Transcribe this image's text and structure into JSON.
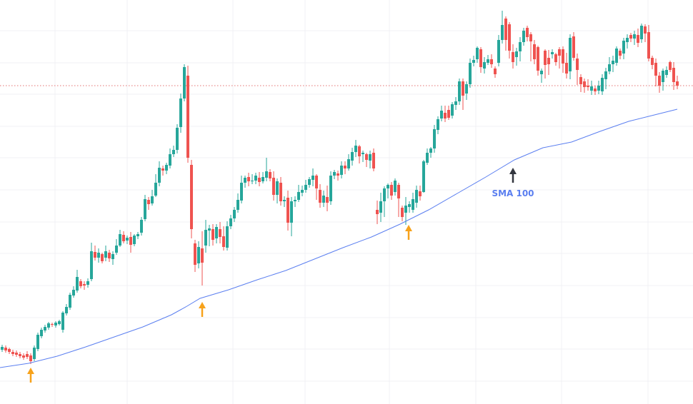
{
  "chart_data": {
    "type": "candlestick",
    "title": "",
    "xlabel": "",
    "ylabel": "",
    "ylim": [
      0,
      566
    ],
    "grid": true,
    "colors": {
      "up": "#26a69a",
      "down": "#ef5350",
      "sma": "#5b7ff0",
      "price_line": "#e57373",
      "arrow_touch": "#f7a21b",
      "arrow_label": "#33363f"
    },
    "last_price": 446,
    "sma": {
      "name": "SMA 100",
      "x": [
        0,
        40,
        80,
        120,
        160,
        200,
        240,
        260,
        280,
        320,
        360,
        400,
        440,
        480,
        520,
        560,
        600,
        640,
        680,
        720,
        760,
        800,
        840,
        880,
        920,
        948
      ],
      "values": [
        51,
        57,
        67,
        80,
        94,
        108,
        125,
        136,
        148,
        160,
        174,
        187,
        203,
        219,
        234,
        252,
        272,
        295,
        318,
        342,
        359,
        367,
        382,
        396,
        406,
        413
      ]
    },
    "arrows": [
      {
        "x": 43,
        "value": 30,
        "type": "touch"
      },
      {
        "x": 283,
        "value": 122,
        "type": "touch"
      },
      {
        "x": 572,
        "value": 230,
        "type": "touch"
      },
      {
        "x": 718,
        "value": 310,
        "type": "label",
        "label": "SMA 100"
      }
    ],
    "candles": [
      [
        3,
        76,
        80,
        83,
        73
      ],
      [
        8,
        79,
        75,
        82,
        72
      ],
      [
        13,
        77,
        73,
        79,
        70
      ],
      [
        18,
        73,
        70,
        76,
        67
      ],
      [
        23,
        72,
        69,
        75,
        66
      ],
      [
        28,
        70,
        67,
        73,
        64
      ],
      [
        33,
        68,
        65,
        71,
        62
      ],
      [
        38,
        70,
        66,
        74,
        63
      ],
      [
        43,
        68,
        60,
        71,
        56
      ],
      [
        48,
        63,
        79,
        82,
        60
      ],
      [
        53,
        77,
        97,
        100,
        74
      ],
      [
        58,
        95,
        104,
        107,
        92
      ],
      [
        63,
        103,
        108,
        111,
        100
      ],
      [
        68,
        107,
        113,
        115,
        104
      ],
      [
        73,
        112,
        111,
        114,
        108
      ],
      [
        78,
        110,
        114,
        116,
        107
      ],
      [
        83,
        112,
        116,
        118,
        110
      ],
      [
        88,
        104,
        128,
        130,
        100
      ],
      [
        93,
        127,
        136,
        140,
        124
      ],
      [
        98,
        135,
        153,
        156,
        132
      ],
      [
        103,
        152,
        160,
        165,
        149
      ],
      [
        108,
        159,
        178,
        188,
        156
      ],
      [
        113,
        172,
        165,
        175,
        162
      ],
      [
        118,
        168,
        166,
        172,
        160
      ],
      [
        123,
        167,
        172,
        176,
        163
      ],
      [
        128,
        175,
        214,
        226,
        172
      ],
      [
        133,
        213,
        205,
        222,
        201
      ],
      [
        138,
        205,
        212,
        218,
        198
      ],
      [
        143,
        210,
        200,
        212,
        197
      ],
      [
        148,
        205,
        214,
        222,
        200
      ],
      [
        153,
        212,
        204,
        216,
        199
      ],
      [
        158,
        203,
        210,
        214,
        195
      ],
      [
        163,
        212,
        222,
        231,
        209
      ],
      [
        168,
        222,
        238,
        244,
        220
      ],
      [
        173,
        237,
        228,
        242,
        225
      ],
      [
        178,
        229,
        233,
        236,
        224
      ],
      [
        183,
        234,
        223,
        241,
        212
      ],
      [
        188,
        224,
        236,
        238,
        221
      ],
      [
        193,
        235,
        238,
        241,
        231
      ],
      [
        198,
        240,
        258,
        262,
        236
      ],
      [
        203,
        259,
        287,
        293,
        256
      ],
      [
        208,
        286,
        280,
        290,
        272
      ],
      [
        213,
        281,
        291,
        300,
        278
      ],
      [
        218,
        292,
        310,
        322,
        290
      ],
      [
        223,
        310,
        331,
        340,
        305
      ],
      [
        228,
        330,
        327,
        334,
        320
      ],
      [
        233,
        327,
        335,
        338,
        322
      ],
      [
        238,
        334,
        350,
        358,
        330
      ],
      [
        243,
        350,
        356,
        362,
        346
      ],
      [
        248,
        356,
        387,
        392,
        351
      ],
      [
        253,
        388,
        428,
        435,
        380
      ],
      [
        258,
        428,
        472,
        476,
        424
      ],
      [
        263,
        460,
        345,
        474,
        338
      ],
      [
        268,
        335,
        245,
        342,
        232
      ],
      [
        273,
        225,
        195,
        230,
        185
      ],
      [
        278,
        197,
        220,
        228,
        190
      ],
      [
        283,
        218,
        198,
        242,
        166
      ],
      [
        288,
        222,
        244,
        258,
        212
      ],
      [
        293,
        243,
        246,
        251,
        221
      ],
      [
        298,
        245,
        230,
        252,
        222
      ],
      [
        303,
        232,
        248,
        252,
        225
      ],
      [
        308,
        245,
        234,
        255,
        225
      ],
      [
        313,
        235,
        220,
        249,
        215
      ],
      [
        318,
        219,
        249,
        256,
        215
      ],
      [
        323,
        249,
        260,
        265,
        245
      ],
      [
        328,
        260,
        272,
        276,
        255
      ],
      [
        333,
        272,
        286,
        295,
        268
      ],
      [
        338,
        285,
        310,
        320,
        281
      ],
      [
        343,
        310,
        317,
        320,
        303
      ],
      [
        348,
        318,
        312,
        324,
        305
      ],
      [
        353,
        312,
        313,
        322,
        308
      ],
      [
        358,
        313,
        320,
        324,
        308
      ],
      [
        363,
        317,
        311,
        325,
        305
      ],
      [
        368,
        312,
        318,
        325,
        309
      ],
      [
        373,
        317,
        326,
        345,
        312
      ],
      [
        378,
        325,
        316,
        329,
        312
      ],
      [
        383,
        317,
        293,
        326,
        285
      ],
      [
        388,
        293,
        312,
        316,
        281
      ],
      [
        393,
        310,
        284,
        318,
        278
      ],
      [
        398,
        284,
        286,
        291,
        276
      ],
      [
        403,
        289,
        254,
        299,
        243
      ],
      [
        408,
        254,
        284,
        290,
        235
      ],
      [
        413,
        284,
        286,
        291,
        276
      ],
      [
        418,
        286,
        297,
        307,
        283
      ],
      [
        423,
        296,
        300,
        306,
        291
      ],
      [
        428,
        300,
        307,
        314,
        296
      ],
      [
        433,
        307,
        315,
        318,
        303
      ],
      [
        438,
        314,
        320,
        330,
        305
      ],
      [
        443,
        320,
        302,
        322,
        286
      ],
      [
        448,
        300,
        282,
        308,
        275
      ],
      [
        453,
        282,
        292,
        299,
        276
      ],
      [
        458,
        290,
        282,
        306,
        270
      ],
      [
        463,
        284,
        320,
        326,
        279
      ],
      [
        468,
        320,
        325,
        328,
        315
      ],
      [
        473,
        323,
        320,
        327,
        313
      ],
      [
        478,
        321,
        334,
        340,
        316
      ],
      [
        483,
        334,
        330,
        340,
        322
      ],
      [
        488,
        330,
        343,
        350,
        327
      ],
      [
        493,
        341,
        353,
        359,
        334
      ],
      [
        498,
        353,
        362,
        370,
        346
      ],
      [
        503,
        361,
        347,
        363,
        337
      ],
      [
        508,
        350,
        352,
        355,
        339
      ],
      [
        513,
        350,
        342,
        352,
        332
      ],
      [
        518,
        341,
        350,
        355,
        330
      ],
      [
        523,
        352,
        330,
        358,
        326
      ],
      [
        528,
        272,
        266,
        285,
        252
      ],
      [
        533,
        268,
        284,
        296,
        255
      ],
      [
        538,
        284,
        302,
        305,
        262
      ],
      [
        543,
        302,
        307,
        309,
        288
      ],
      [
        548,
        307,
        292,
        311,
        286
      ],
      [
        553,
        297,
        313,
        316,
        292
      ],
      [
        558,
        307,
        288,
        310,
        262
      ],
      [
        563,
        275,
        262,
        278,
        256
      ],
      [
        568,
        268,
        278,
        290,
        251
      ],
      [
        573,
        276,
        280,
        284,
        268
      ],
      [
        578,
        272,
        287,
        296,
        268
      ],
      [
        583,
        282,
        300,
        306,
        275
      ],
      [
        588,
        298,
        291,
        306,
        285
      ],
      [
        593,
        297,
        340,
        342,
        296
      ],
      [
        598,
        338,
        352,
        358,
        335
      ],
      [
        603,
        352,
        358,
        360,
        345
      ],
      [
        608,
        358,
        385,
        391,
        352
      ],
      [
        613,
        384,
        399,
        403,
        378
      ],
      [
        618,
        400,
        411,
        418,
        396
      ],
      [
        623,
        408,
        400,
        418,
        395
      ],
      [
        628,
        412,
        401,
        418,
        398
      ],
      [
        633,
        404,
        420,
        423,
        400
      ],
      [
        638,
        419,
        424,
        430,
        412
      ],
      [
        643,
        424,
        452,
        456,
        419
      ],
      [
        648,
        452,
        432,
        456,
        412
      ],
      [
        653,
        435,
        448,
        452,
        426
      ],
      [
        658,
        448,
        478,
        484,
        443
      ],
      [
        663,
        478,
        482,
        488,
        473
      ],
      [
        668,
        483,
        499,
        501,
        478
      ],
      [
        673,
        497,
        472,
        500,
        464
      ],
      [
        678,
        470,
        479,
        486,
        463
      ],
      [
        683,
        478,
        483,
        489,
        475
      ],
      [
        688,
        483,
        476,
        490,
        471
      ],
      [
        693,
        470,
        462,
        473,
        457
      ],
      [
        698,
        478,
        510,
        517,
        473
      ],
      [
        703,
        510,
        531,
        551,
        505
      ],
      [
        708,
        540,
        510,
        543,
        495
      ],
      [
        713,
        532,
        495,
        535,
        484
      ],
      [
        718,
        493,
        479,
        504,
        470
      ],
      [
        723,
        486,
        494,
        499,
        474
      ],
      [
        728,
        494,
        507,
        514,
        480
      ],
      [
        733,
        507,
        523,
        527,
        502
      ],
      [
        738,
        527,
        514,
        530,
        508
      ],
      [
        743,
        518,
        508,
        521,
        480
      ],
      [
        748,
        504,
        483,
        510,
        476
      ],
      [
        753,
        500,
        467,
        502,
        460
      ],
      [
        758,
        462,
        467,
        470,
        450
      ],
      [
        763,
        495,
        475,
        497,
        456
      ],
      [
        768,
        485,
        476,
        496,
        461
      ],
      [
        773,
        490,
        493,
        497,
        484
      ],
      [
        778,
        490,
        479,
        492,
        474
      ],
      [
        783,
        497,
        488,
        500,
        470
      ],
      [
        788,
        497,
        477,
        501,
        464
      ],
      [
        793,
        478,
        463,
        492,
        456
      ],
      [
        798,
        466,
        513,
        518,
        455
      ],
      [
        803,
        515,
        485,
        521,
        481
      ],
      [
        808,
        484,
        468,
        491,
        447
      ],
      [
        813,
        458,
        448,
        462,
        437
      ],
      [
        818,
        452,
        444,
        456,
        436
      ],
      [
        823,
        446,
        444,
        455,
        439
      ],
      [
        828,
        439,
        445,
        453,
        433
      ],
      [
        833,
        442,
        438,
        446,
        433
      ],
      [
        838,
        439,
        446,
        453,
        434
      ],
      [
        843,
        438,
        457,
        462,
        433
      ],
      [
        848,
        455,
        466,
        471,
        441
      ],
      [
        853,
        466,
        476,
        486,
        462
      ],
      [
        858,
        476,
        481,
        488,
        465
      ],
      [
        863,
        478,
        498,
        501,
        474
      ],
      [
        868,
        495,
        488,
        498,
        483
      ],
      [
        873,
        491,
        509,
        513,
        483
      ],
      [
        878,
        507,
        513,
        518,
        498
      ],
      [
        883,
        517,
        512,
        520,
        507
      ],
      [
        888,
        512,
        518,
        523,
        503
      ],
      [
        893,
        517,
        506,
        526,
        500
      ],
      [
        898,
        511,
        530,
        533,
        506
      ],
      [
        903,
        529,
        519,
        532,
        507
      ],
      [
        908,
        521,
        484,
        531,
        480
      ],
      [
        913,
        485,
        475,
        488,
        469
      ],
      [
        918,
        478,
        460,
        484,
        445
      ],
      [
        923,
        460,
        446,
        465,
        436
      ],
      [
        928,
        451,
        467,
        470,
        439
      ],
      [
        933,
        461,
        468,
        473,
        457
      ],
      [
        938,
        479,
        468,
        481,
        465
      ],
      [
        943,
        471,
        451,
        479,
        440
      ],
      [
        948,
        452,
        446,
        460,
        441
      ]
    ]
  }
}
